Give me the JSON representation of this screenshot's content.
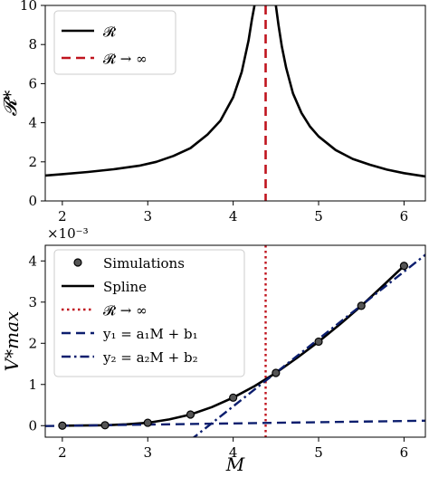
{
  "chart_data": [
    {
      "type": "line",
      "xlim": [
        1.8,
        6.25
      ],
      "ylim": [
        0,
        10
      ],
      "ylabel": "𝓡*",
      "xticks": [
        2,
        3,
        4,
        5,
        6
      ],
      "yticks": [
        0,
        2,
        4,
        6,
        8,
        10
      ],
      "xtick_labels": [
        "2",
        "3",
        "4",
        "5",
        "6"
      ],
      "ytick_labels": [
        "0",
        "2",
        "4",
        "6",
        "8",
        "10"
      ],
      "grid": false,
      "legend_position": "top-left",
      "series": [
        {
          "name": "𝓡",
          "style": "solid",
          "color": "#000000",
          "x": [
            1.8,
            2.0,
            2.3,
            2.6,
            2.9,
            3.1,
            3.3,
            3.5,
            3.7,
            3.85,
            4.0,
            4.1,
            4.18,
            4.22,
            4.25
          ],
          "y": [
            1.3,
            1.37,
            1.48,
            1.62,
            1.8,
            2.0,
            2.3,
            2.7,
            3.4,
            4.1,
            5.3,
            6.6,
            8.2,
            9.3,
            10.0
          ]
        },
        {
          "name": "𝓡",
          "style": "solid",
          "color": "#000000",
          "x": [
            4.5,
            4.53,
            4.57,
            4.62,
            4.7,
            4.8,
            4.9,
            5.0,
            5.2,
            5.4,
            5.6,
            5.8,
            6.0,
            6.25
          ],
          "y": [
            10.0,
            9.0,
            7.9,
            6.8,
            5.5,
            4.5,
            3.8,
            3.3,
            2.6,
            2.15,
            1.85,
            1.6,
            1.42,
            1.25
          ]
        }
      ],
      "vlines": [
        {
          "name": "𝓡 → ∞",
          "x": 4.38,
          "style": "dashed",
          "color": "#c0141e"
        }
      ],
      "legend": [
        "𝓡",
        "𝓡 → ∞"
      ]
    },
    {
      "type": "line",
      "xlim": [
        1.8,
        6.25
      ],
      "ylim": [
        -0.00028,
        0.00438
      ],
      "xlabel": "M",
      "ylabel": "V*max",
      "scale_label": "×10⁻³",
      "xticks": [
        2,
        3,
        4,
        5,
        6
      ],
      "yticks": [
        0,
        0.001,
        0.002,
        0.003,
        0.004
      ],
      "xtick_labels": [
        "2",
        "3",
        "4",
        "5",
        "6"
      ],
      "ytick_labels": [
        "0",
        "1",
        "2",
        "3",
        "4"
      ],
      "grid": false,
      "legend_position": "top-left",
      "simulations": {
        "name": "Simulations",
        "x": [
          2.0,
          2.5,
          3.0,
          3.5,
          4.0,
          4.5,
          5.0,
          5.5,
          6.0
        ],
        "y": [
          0.0,
          1e-05,
          7e-05,
          0.00027,
          0.00068,
          0.00128,
          0.00204,
          0.00291,
          0.00388
        ]
      },
      "spline": {
        "name": "Spline",
        "x": [
          2.0,
          2.25,
          2.5,
          2.75,
          3.0,
          3.25,
          3.5,
          3.75,
          4.0,
          4.25,
          4.5,
          4.75,
          5.0,
          5.25,
          5.5,
          5.75,
          6.0
        ],
        "y": [
          0.0,
          3e-06,
          1e-05,
          3.2e-05,
          7e-05,
          0.00015,
          0.00027,
          0.00045,
          0.00068,
          0.00096,
          0.00128,
          0.00165,
          0.00204,
          0.00246,
          0.00291,
          0.00339,
          0.00388
        ]
      },
      "vlines": [
        {
          "name": "𝓡 → ∞",
          "x": 4.38,
          "style": "dotted",
          "color": "#c0141e"
        }
      ],
      "fits": [
        {
          "name": "y₁ = a₁M + b₁",
          "style": "dashed",
          "color": "#0c1e6e",
          "x": [
            1.8,
            6.25
          ],
          "y": [
            -1e-05,
            0.00012
          ]
        },
        {
          "name": "y₂ = a₂M + b₂",
          "style": "dashdot",
          "color": "#0c1e6e",
          "x": [
            3.5,
            6.25
          ],
          "y": [
            -0.00035,
            0.00415
          ]
        }
      ],
      "legend": [
        "Simulations",
        "Spline",
        "𝓡 → ∞",
        "y₁ = a₁M + b₁",
        "y₂ = a₂M + b₂"
      ]
    }
  ]
}
